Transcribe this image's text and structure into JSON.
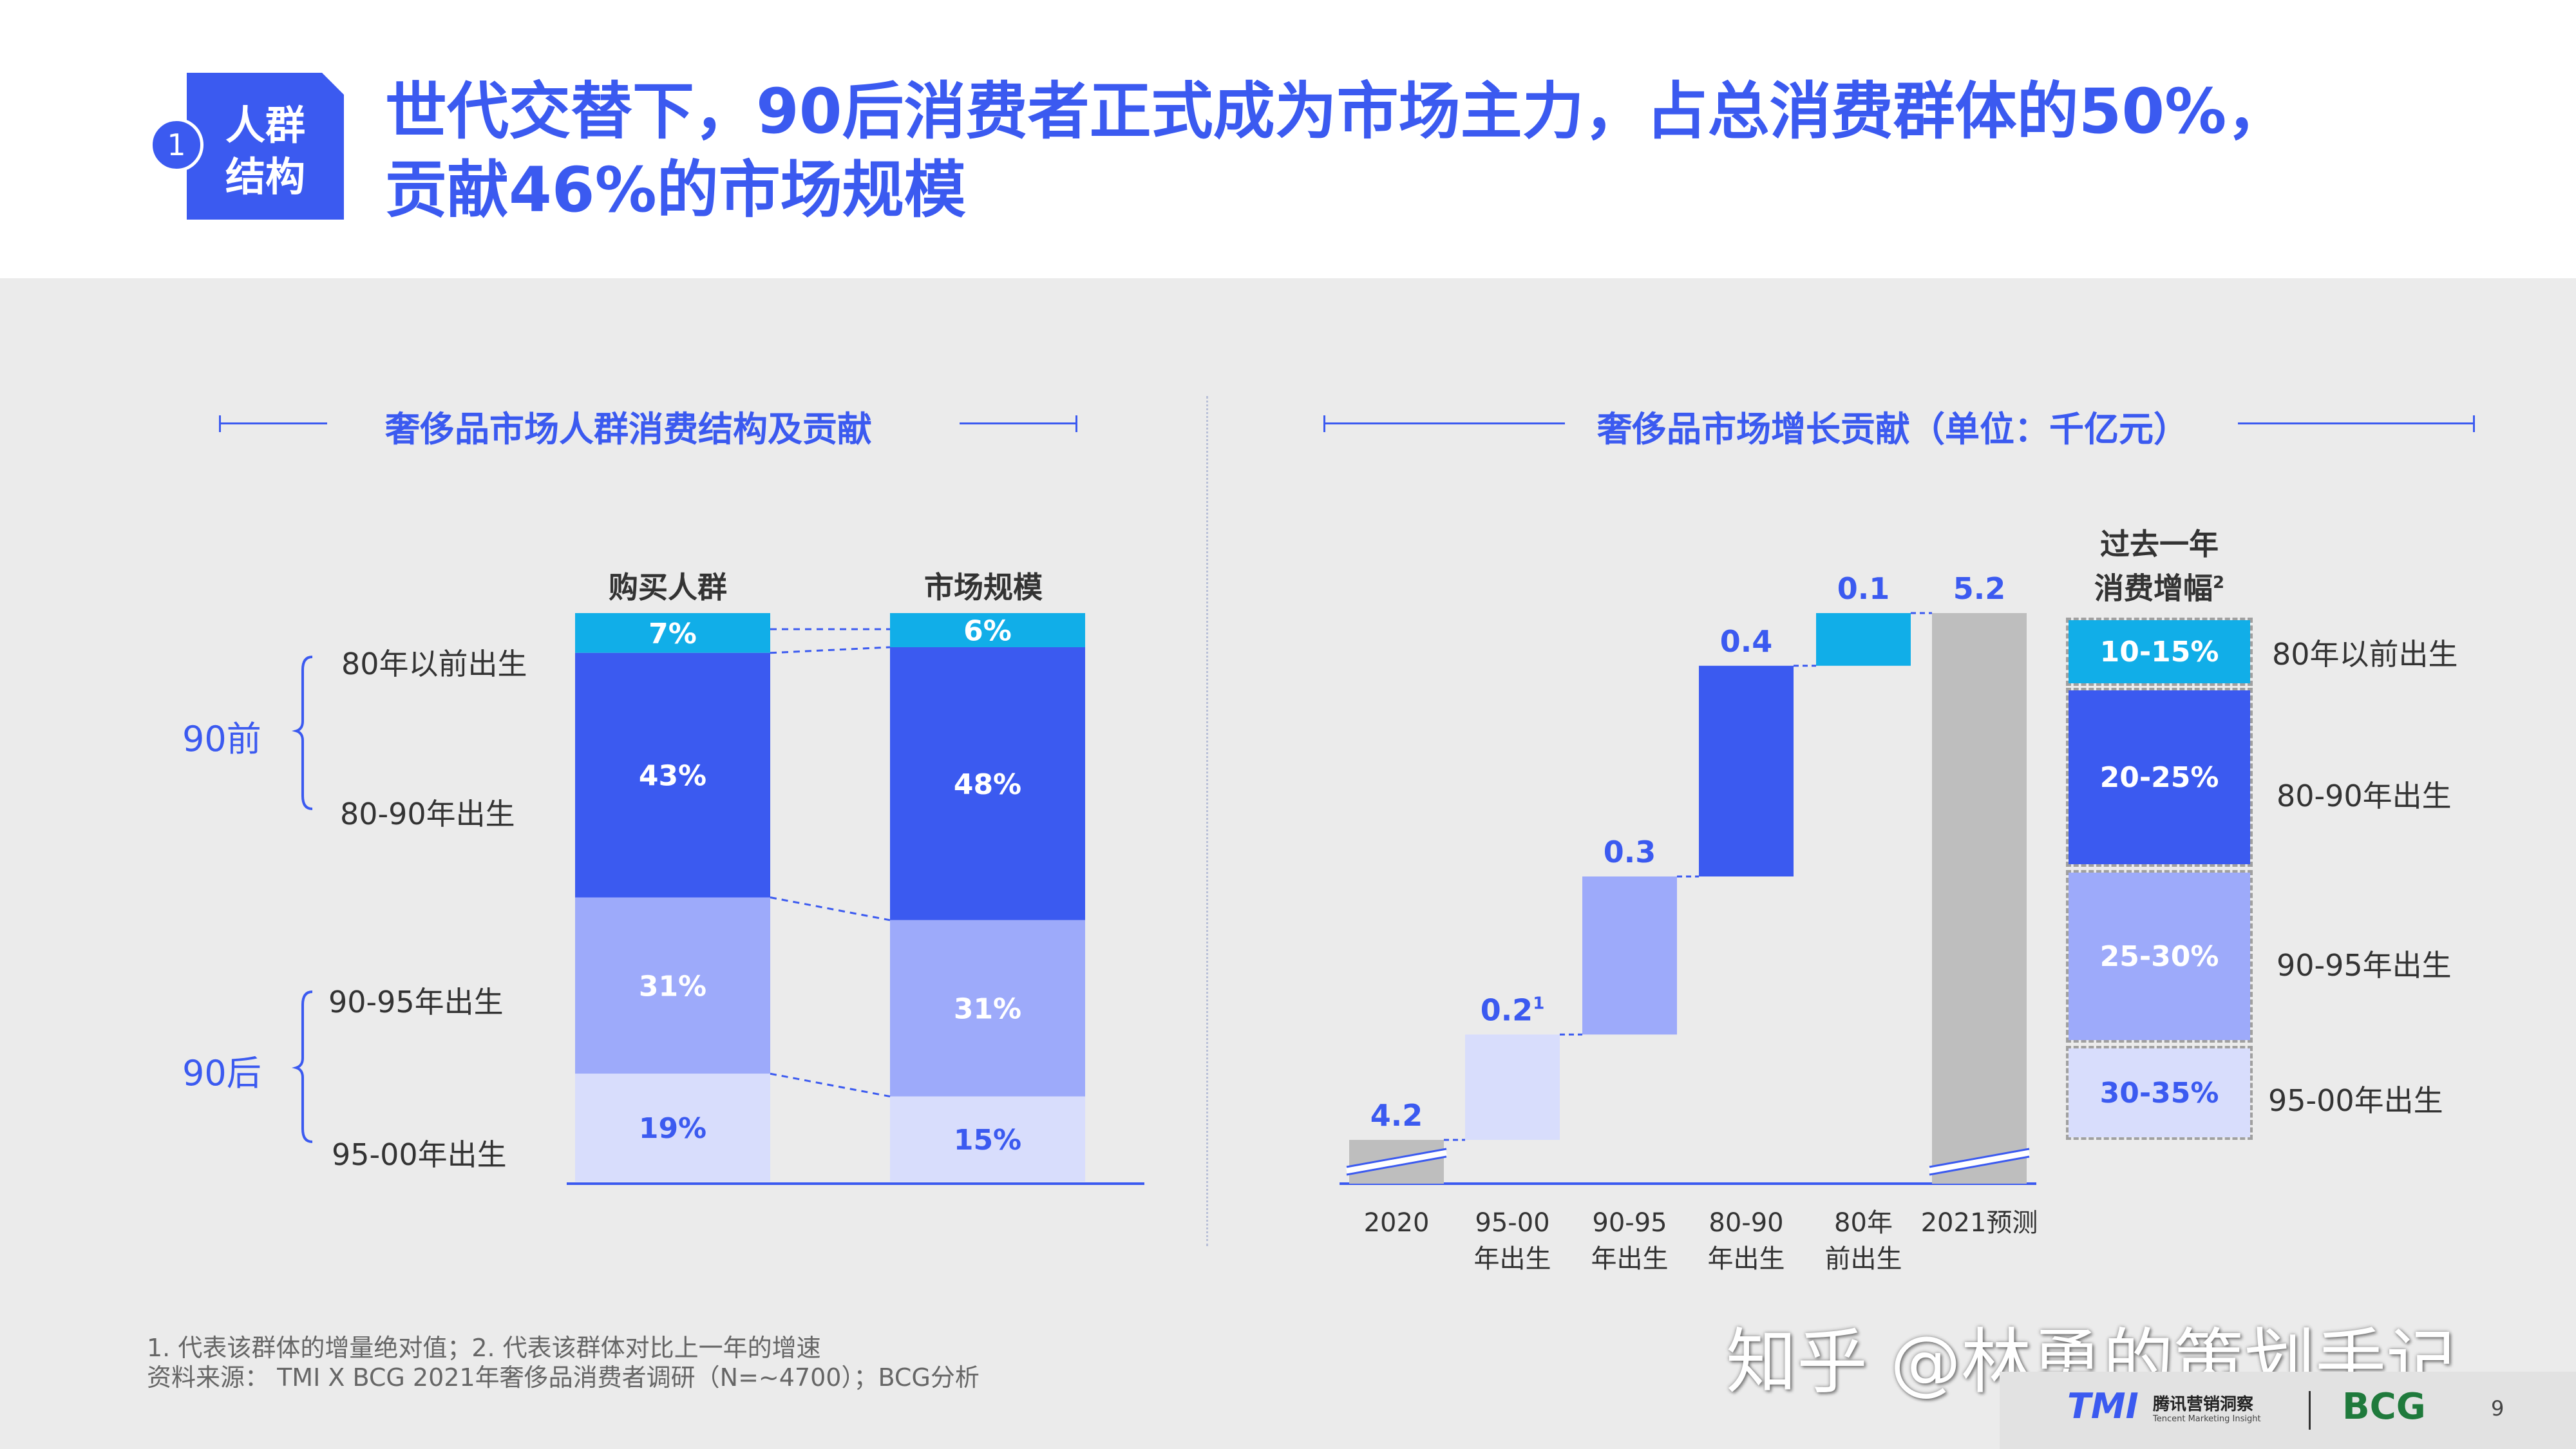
{
  "header": {
    "badge_number": "1",
    "badge_line1": "人群",
    "badge_line2": "结构",
    "title_line1": "世代交替下，90后消费者正式成为市场主力，占总消费群体的50%，",
    "title_line2": "贡献46%的市场规模",
    "colors": {
      "accent": "#3b5af0"
    }
  },
  "left_section_title": "奢侈品市场人群消费结构及贡献",
  "right_section_title": "奢侈品市场增长贡献（单位：千亿元）",
  "left_chart": {
    "group_labels": {
      "pre90": "90前",
      "post90": "90后"
    },
    "row_labels": [
      "80年以前出生",
      "80-90年出生",
      "90-95年出生",
      "95-00年出生"
    ]
  },
  "right_chart": {
    "growth_header_line1": "过去一年",
    "growth_header_line2": "消费增幅",
    "growth_header_sup": "2",
    "growth_boxes": [
      "10-15%",
      "20-25%",
      "25-30%",
      "30-35%"
    ],
    "growth_labels": [
      "80年以前出生",
      "80-90年出生",
      "90-95年出生",
      "95-00年出生"
    ],
    "footnote_sup": "1"
  },
  "chart_data": [
    {
      "type": "bar",
      "stacked": true,
      "categories": [
        "购买人群",
        "市场规模"
      ],
      "series": [
        {
          "name": "80年以前出生",
          "values": [
            7,
            6
          ],
          "labels": [
            "7%",
            "6%"
          ],
          "color": "#11aee8"
        },
        {
          "name": "80-90年出生",
          "values": [
            43,
            48
          ],
          "labels": [
            "43%",
            "48%"
          ],
          "color": "#3b5af0"
        },
        {
          "name": "90-95年出生",
          "values": [
            31,
            31
          ],
          "labels": [
            "31%",
            "31%"
          ],
          "color": "#9daafa"
        },
        {
          "name": "95-00年出生",
          "values": [
            19,
            15
          ],
          "labels": [
            "19%",
            "15%"
          ],
          "color": "#d8ddfc"
        }
      ],
      "ylim": [
        0,
        100
      ]
    },
    {
      "type": "bar",
      "waterfall": true,
      "categories": [
        "2020",
        "95-00年出生",
        "90-95年出生",
        "80-90年出生",
        "80年前出生",
        "2021预测"
      ],
      "values": [
        4.2,
        0.2,
        0.3,
        0.4,
        0.1,
        5.2
      ],
      "labels": [
        "4.2",
        "0.2",
        "0.3",
        "0.4",
        "0.1",
        "5.2"
      ],
      "colors": [
        "#bebebe",
        "#d8ddfc",
        "#9daafa",
        "#3b5af0",
        "#11aee8",
        "#bebebe"
      ],
      "axis_break": true
    }
  ],
  "footnotes": {
    "line1": "1. 代表该群体的增量绝对值；2. 代表该群体对比上一年的增速",
    "line2": "资料来源： TMI X BCG 2021年奢侈品消费者调研（N=~4700）；BCG分析"
  },
  "watermark": "知乎 @林勇的策划手记",
  "footer": {
    "tmi_logo": "TMI",
    "tmi_cn": "腾讯营销洞察",
    "tmi_en": "Tencent Marketing Insight",
    "bcg_logo": "BCG",
    "page_number": "9"
  }
}
